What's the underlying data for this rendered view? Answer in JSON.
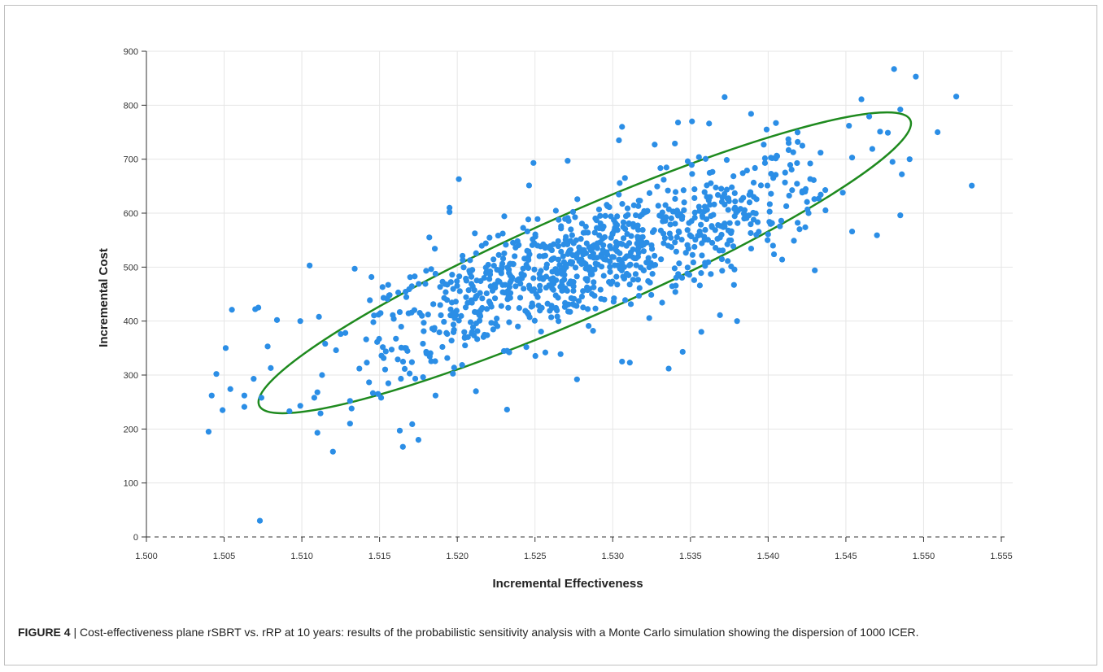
{
  "caption": {
    "label": "FIGURE 4",
    "separator": " | ",
    "text": "Cost-effectiveness plane rSBRT vs. rRP at 10 years: results of the probabilistic sensitivity analysis with a Monte Carlo simulation showing the dispersion of 1000 ICER."
  },
  "colors": {
    "point": "#2b8ee6",
    "ellipse": "#1e8a1e",
    "grid": "#e6e6e6",
    "axis": "#333333"
  },
  "chart_data": {
    "type": "scatter",
    "title": "",
    "xlabel": "Incremental Effectiveness",
    "ylabel": "Incremental Cost",
    "xlim": [
      1.5,
      1.555
    ],
    "ylim": [
      0,
      900
    ],
    "xticks": [
      "1.500",
      "1.505",
      "1.510",
      "1.515",
      "1.520",
      "1.525",
      "1.530",
      "1.535",
      "1.540",
      "1.545",
      "1.550",
      "1.555"
    ],
    "yticks": [
      "0",
      "100",
      "200",
      "300",
      "400",
      "500",
      "600",
      "700",
      "800",
      "900"
    ],
    "grid": true,
    "zero_line": "dashed",
    "n_points_shown": 1000,
    "confidence_ellipse": {
      "center": [
        1.5282,
        508
      ],
      "x_extent": [
        1.5071,
        1.5494
      ],
      "y_extent": [
        224,
        792
      ]
    },
    "series": [
      {
        "points": [
          [
            1.504,
            195
          ],
          [
            1.5042,
            262
          ],
          [
            1.5045,
            302
          ],
          [
            1.5049,
            235
          ],
          [
            1.5051,
            350
          ],
          [
            1.5054,
            274
          ],
          [
            1.5055,
            421
          ],
          [
            1.5063,
            262
          ],
          [
            1.5063,
            241
          ],
          [
            1.5069,
            293
          ],
          [
            1.507,
            422
          ],
          [
            1.5072,
            425
          ],
          [
            1.5073,
            30
          ],
          [
            1.5074,
            258
          ],
          [
            1.5078,
            353
          ],
          [
            1.508,
            313
          ],
          [
            1.5084,
            402
          ],
          [
            1.5092,
            233
          ],
          [
            1.5099,
            400
          ],
          [
            1.5099,
            243
          ],
          [
            1.5105,
            503
          ],
          [
            1.5108,
            258
          ],
          [
            1.511,
            268
          ],
          [
            1.511,
            193
          ],
          [
            1.5111,
            408
          ],
          [
            1.5112,
            229
          ],
          [
            1.5113,
            300
          ],
          [
            1.5115,
            358
          ],
          [
            1.512,
            158
          ],
          [
            1.5122,
            346
          ],
          [
            1.5125,
            376
          ],
          [
            1.5128,
            378
          ],
          [
            1.5131,
            210
          ],
          [
            1.5131,
            252
          ],
          [
            1.5132,
            238
          ],
          [
            1.5134,
            497
          ],
          [
            1.5137,
            312
          ],
          [
            1.5146,
            398
          ],
          [
            1.5149,
            265
          ],
          [
            1.5151,
            258
          ],
          [
            1.5155,
            441
          ],
          [
            1.5162,
            453
          ],
          [
            1.5163,
            197
          ],
          [
            1.5165,
            167
          ],
          [
            1.5167,
            350
          ],
          [
            1.5169,
            459
          ],
          [
            1.5171,
            209
          ],
          [
            1.5175,
            180
          ],
          [
            1.5178,
            296
          ],
          [
            1.518,
            343
          ],
          [
            1.5182,
            555
          ],
          [
            1.5185,
            384
          ],
          [
            1.5186,
            262
          ],
          [
            1.5193,
            378
          ],
          [
            1.5195,
            602
          ],
          [
            1.5195,
            610
          ],
          [
            1.5201,
            663
          ],
          [
            1.5212,
            270
          ],
          [
            1.5232,
            236
          ],
          [
            1.5249,
            693
          ],
          [
            1.5271,
            697
          ],
          [
            1.5277,
            292
          ],
          [
            1.5304,
            735
          ],
          [
            1.5306,
            760
          ],
          [
            1.5306,
            325
          ],
          [
            1.5311,
            323
          ],
          [
            1.5327,
            727
          ],
          [
            1.5336,
            312
          ],
          [
            1.534,
            729
          ],
          [
            1.5342,
            768
          ],
          [
            1.5345,
            343
          ],
          [
            1.5351,
            770
          ],
          [
            1.5357,
            380
          ],
          [
            1.5362,
            766
          ],
          [
            1.5369,
            411
          ],
          [
            1.5372,
            815
          ],
          [
            1.5378,
            467
          ],
          [
            1.538,
            400
          ],
          [
            1.5389,
            784
          ],
          [
            1.5399,
            755
          ],
          [
            1.5405,
            767
          ],
          [
            1.5409,
            514
          ],
          [
            1.5413,
            737
          ],
          [
            1.5419,
            732
          ],
          [
            1.5422,
            725
          ],
          [
            1.5426,
            600
          ],
          [
            1.543,
            494
          ],
          [
            1.5448,
            638
          ],
          [
            1.5452,
            762
          ],
          [
            1.5454,
            703
          ],
          [
            1.5454,
            566
          ],
          [
            1.546,
            811
          ],
          [
            1.5465,
            779
          ],
          [
            1.5467,
            719
          ],
          [
            1.547,
            559
          ],
          [
            1.5472,
            751
          ],
          [
            1.5477,
            749
          ],
          [
            1.548,
            695
          ],
          [
            1.5481,
            867
          ],
          [
            1.5485,
            792
          ],
          [
            1.5485,
            596
          ],
          [
            1.5486,
            672
          ],
          [
            1.5491,
            700
          ],
          [
            1.5495,
            853
          ],
          [
            1.5509,
            750
          ],
          [
            1.5521,
            816
          ],
          [
            1.5531,
            651
          ]
        ]
      }
    ]
  }
}
